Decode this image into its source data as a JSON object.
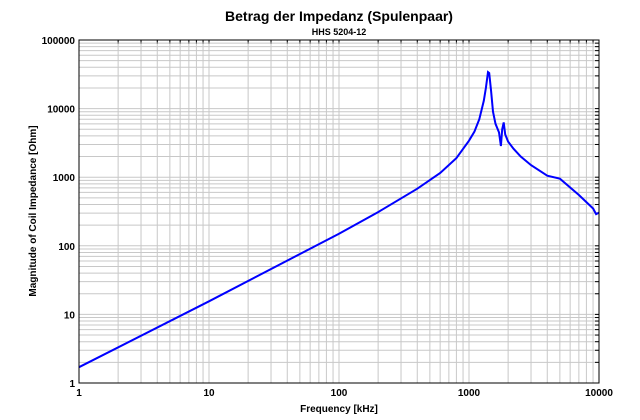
{
  "chart_data": {
    "type": "line",
    "title": "Betrag der Impedanz (Spulenpaar)",
    "subtitle": "HHS 5204-12",
    "xlabel": "Frequency [kHz]",
    "ylabel": "Magnitude of Coil Impedance [Ohm]",
    "xscale": "log",
    "yscale": "log",
    "xlim": [
      1,
      10000
    ],
    "ylim": [
      1,
      100000
    ],
    "grid": true,
    "x_ticks": [
      1,
      10,
      100,
      1000,
      10000
    ],
    "x_tick_labels": [
      "1",
      "10",
      "100",
      "1000",
      "10000"
    ],
    "y_ticks": [
      1,
      10,
      100,
      1000,
      10000,
      100000
    ],
    "y_tick_labels": [
      "1",
      "10",
      "100",
      "1000",
      "10000",
      "100000"
    ],
    "line_color": "#0000ff",
    "series": [
      {
        "name": "Impedance",
        "x": [
          1,
          10,
          100,
          200,
          400,
          600,
          800,
          1000,
          1100,
          1200,
          1300,
          1350,
          1400,
          1430,
          1480,
          1530,
          1600,
          1700,
          1760,
          1800,
          1850,
          1900,
          2000,
          2200,
          2500,
          3000,
          4000,
          5000,
          7000,
          9000,
          9500,
          10000
        ],
        "y": [
          1.7,
          15.5,
          150,
          310,
          680,
          1150,
          1900,
          3400,
          4600,
          7000,
          13000,
          20000,
          34000,
          33000,
          18000,
          9000,
          6000,
          4500,
          2850,
          5000,
          6300,
          4200,
          3300,
          2600,
          2000,
          1500,
          1050,
          950,
          550,
          350,
          290,
          305
        ]
      }
    ]
  }
}
